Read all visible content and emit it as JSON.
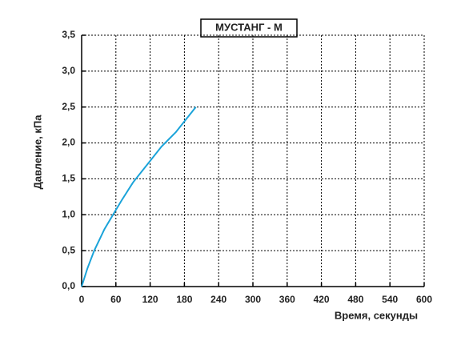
{
  "chart_data": {
    "type": "line",
    "title": "МУСТАНГ - М",
    "x_label": "Время, секунды",
    "y_label": "Давление, кПа",
    "series": [
      {
        "name": null,
        "color": "#1aa3d9",
        "x": [
          0,
          10,
          22,
          40,
          55,
          70,
          90,
          115,
          140,
          165,
          180,
          200
        ],
        "values": [
          0,
          0.25,
          0.5,
          0.8,
          1.0,
          1.2,
          1.45,
          1.7,
          1.95,
          2.15,
          2.3,
          2.5
        ]
      }
    ],
    "xlim": [
      0,
      600
    ],
    "xticks": [
      0,
      60,
      120,
      180,
      240,
      300,
      360,
      420,
      480,
      540,
      600
    ],
    "ylim": [
      0,
      3.5
    ],
    "yticks": [
      {
        "value": 0,
        "label": "0,0"
      },
      {
        "value": 0.5,
        "label": "0,5"
      },
      {
        "value": 1,
        "label": "1,0"
      },
      {
        "value": 1.5,
        "label": "1,5"
      },
      {
        "value": 2,
        "label": "2,0"
      },
      {
        "value": 2.5,
        "label": "2,5"
      },
      {
        "value": 3,
        "label": "3,0"
      },
      {
        "value": 3.5,
        "label": "3,5"
      }
    ],
    "grid": true
  }
}
